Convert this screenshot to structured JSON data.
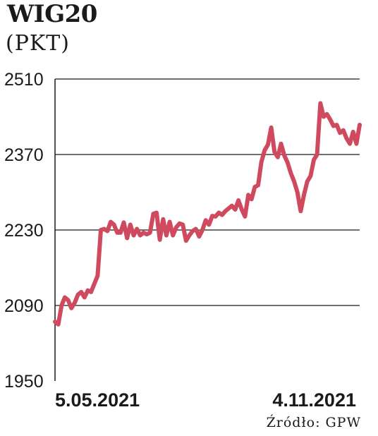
{
  "chart_data": {
    "type": "line",
    "title": "WIG20",
    "subtitle": "(PKT)",
    "ylabel": "",
    "xlabel": "",
    "ylim": [
      1950,
      2510
    ],
    "yticks": [
      1950,
      2090,
      2230,
      2370,
      2510
    ],
    "yticks_label": [
      "1950",
      "2090",
      "2230",
      "2370",
      "2510"
    ],
    "xticks": [
      "5.05.2021",
      "4.11.2021"
    ],
    "grid": "horizontal",
    "line_color": "#d04a5f",
    "series": [
      {
        "values": [
          2060,
          2055,
          2090,
          2105,
          2100,
          2085,
          2095,
          2110,
          2115,
          2105,
          2118,
          2115,
          2130,
          2145,
          2230,
          2232,
          2228,
          2245,
          2240,
          2225,
          2225,
          2244,
          2215,
          2240,
          2220,
          2232,
          2220,
          2225,
          2222,
          2225,
          2260,
          2262,
          2212,
          2250,
          2220,
          2245,
          2220,
          2235,
          2242,
          2240,
          2210,
          2220,
          2228,
          2232,
          2218,
          2230,
          2248,
          2240,
          2256,
          2255,
          2262,
          2258,
          2265,
          2270,
          2275,
          2268,
          2285,
          2268,
          2255,
          2295,
          2287,
          2310,
          2313,
          2356,
          2378,
          2388,
          2420,
          2375,
          2365,
          2390,
          2368,
          2355,
          2335,
          2320,
          2300,
          2265,
          2295,
          2320,
          2330,
          2360,
          2370,
          2465,
          2440,
          2445,
          2435,
          2423,
          2425,
          2410,
          2415,
          2400,
          2390,
          2412,
          2390,
          2425
        ]
      }
    ],
    "source": "Źródło: GPW"
  }
}
